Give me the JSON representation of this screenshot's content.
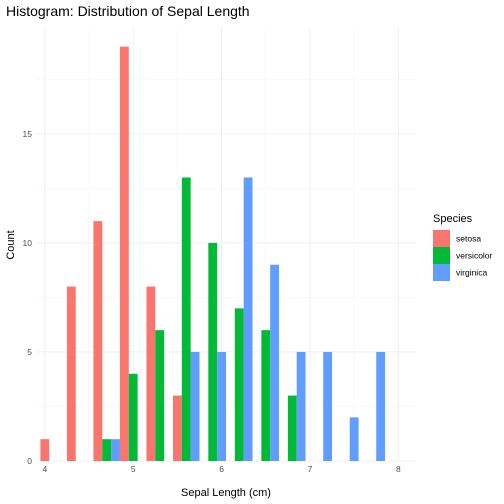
{
  "chart_data": {
    "type": "bar",
    "title": "Histogram: Distribution of Sepal Length",
    "xlabel": "Sepal Length (cm)",
    "ylabel": "Count",
    "xlim": [
      3.9,
      8.2
    ],
    "ylim": [
      0,
      19.9
    ],
    "x_ticks": [
      4,
      5,
      6,
      7,
      8
    ],
    "y_ticks": [
      0,
      5,
      10,
      15
    ],
    "grid": true,
    "bin_width": 0.3,
    "legend": {
      "title": "Species",
      "placement": "right"
    },
    "categories": [
      4.1,
      4.4,
      4.7,
      5.0,
      5.3,
      5.6,
      5.9,
      6.2,
      6.5,
      6.8,
      7.1,
      7.4,
      7.7,
      8.0
    ],
    "series": [
      {
        "name": "setosa",
        "color": "#F8766D",
        "values": [
          1,
          8,
          11,
          19,
          8,
          3,
          0,
          0,
          0,
          0,
          0,
          0,
          0,
          0
        ]
      },
      {
        "name": "versicolor",
        "color": "#00BA38",
        "values": [
          0,
          0,
          1,
          4,
          6,
          13,
          10,
          7,
          6,
          3,
          0,
          0,
          0,
          0
        ]
      },
      {
        "name": "virginica",
        "color": "#619CFF",
        "values": [
          0,
          0,
          1,
          0,
          0,
          5,
          5,
          13,
          9,
          5,
          5,
          2,
          5,
          0
        ]
      }
    ]
  }
}
